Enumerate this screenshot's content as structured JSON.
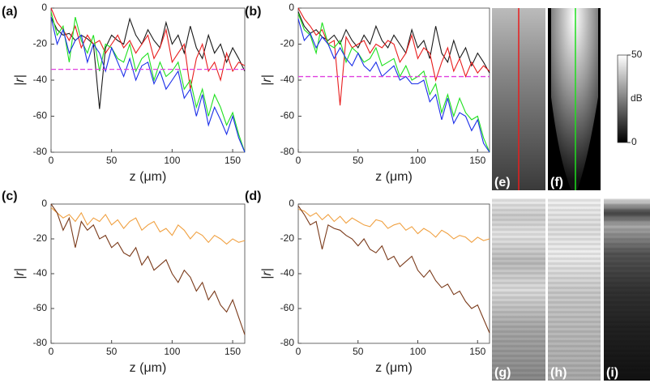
{
  "chart_data": [
    {
      "type": "line",
      "panel_label": "(a)",
      "xlabel": "z (μm)",
      "ylabel": "|r|",
      "x": [
        0,
        5,
        10,
        15,
        20,
        25,
        30,
        35,
        40,
        45,
        50,
        55,
        60,
        65,
        70,
        75,
        80,
        85,
        90,
        95,
        100,
        105,
        110,
        115,
        120,
        125,
        130,
        135,
        140,
        145,
        150,
        155,
        160
      ],
      "xlim": [
        0,
        160
      ],
      "ylim": [
        -80,
        0
      ],
      "xticks": [
        0,
        50,
        100,
        150
      ],
      "yticks": [
        -80,
        -60,
        -40,
        -20,
        0
      ],
      "reference_line": {
        "value": -34,
        "color": "#e040e0"
      },
      "series": [
        {
          "color": "#1a1a1a",
          "values": [
            -5,
            -12,
            -15,
            -14,
            -18,
            -15,
            -17,
            -20,
            -56,
            -22,
            -15,
            -18,
            -20,
            -6,
            -15,
            -20,
            -12,
            -18,
            -22,
            -8,
            -20,
            -15,
            -25,
            -10,
            -22,
            -28,
            -15,
            -25,
            -20,
            -30,
            -22,
            -28,
            -35
          ]
        },
        {
          "color": "#e81d1d",
          "values": [
            0,
            -8,
            -12,
            -18,
            -10,
            -22,
            -15,
            -20,
            -18,
            -25,
            -20,
            -15,
            -22,
            -18,
            -25,
            -20,
            -15,
            -28,
            -22,
            -12,
            -30,
            -25,
            -20,
            -45,
            -28,
            -20,
            -35,
            -30,
            -40,
            -25,
            -35,
            -30,
            -32
          ]
        },
        {
          "color": "#1ee01e",
          "values": [
            -2,
            -15,
            -10,
            -30,
            -5,
            -18,
            -25,
            -15,
            -35,
            -20,
            -22,
            -28,
            -30,
            -20,
            -35,
            -28,
            -25,
            -40,
            -30,
            -38,
            -35,
            -30,
            -45,
            -40,
            -55,
            -45,
            -60,
            -48,
            -55,
            -65,
            -58,
            -70,
            -80
          ]
        },
        {
          "color": "#1a2ee8",
          "values": [
            -5,
            -20,
            -12,
            -25,
            -18,
            -15,
            -30,
            -20,
            -25,
            -35,
            -22,
            -30,
            -38,
            -28,
            -40,
            -32,
            -30,
            -42,
            -35,
            -45,
            -40,
            -35,
            -50,
            -45,
            -60,
            -48,
            -65,
            -55,
            -62,
            -70,
            -60,
            -72,
            -80
          ]
        }
      ]
    },
    {
      "type": "line",
      "panel_label": "(b)",
      "xlabel": "z (μm)",
      "ylabel": "|r|",
      "x": [
        0,
        5,
        10,
        15,
        20,
        25,
        30,
        35,
        40,
        45,
        50,
        55,
        60,
        65,
        70,
        75,
        80,
        85,
        90,
        95,
        100,
        105,
        110,
        115,
        120,
        125,
        130,
        135,
        140,
        145,
        150,
        155,
        160
      ],
      "xlim": [
        0,
        160
      ],
      "ylim": [
        -80,
        0
      ],
      "xticks": [
        0,
        50,
        100,
        150
      ],
      "yticks": [
        -80,
        -60,
        -40,
        -20,
        0
      ],
      "reference_line": {
        "value": -38,
        "color": "#e040e0"
      },
      "series": [
        {
          "color": "#1a1a1a",
          "values": [
            -2,
            -10,
            -14,
            -12,
            -16,
            -18,
            -15,
            -20,
            -12,
            -18,
            -22,
            -15,
            -20,
            -10,
            -18,
            -22,
            -15,
            -20,
            -25,
            -12,
            -22,
            -18,
            -28,
            -10,
            -25,
            -30,
            -18,
            -28,
            -22,
            -32,
            -25,
            -30,
            -36
          ]
        },
        {
          "color": "#e81d1d",
          "values": [
            0,
            -6,
            -10,
            -15,
            -12,
            -20,
            -18,
            -54,
            -16,
            -22,
            -20,
            -18,
            -25,
            -20,
            -22,
            -18,
            -20,
            -30,
            -25,
            -15,
            -28,
            -22,
            -25,
            -40,
            -30,
            -22,
            -35,
            -28,
            -38,
            -30,
            -36,
            -32,
            -35
          ]
        },
        {
          "color": "#1ee01e",
          "values": [
            -3,
            -12,
            -15,
            -25,
            -8,
            -20,
            -22,
            -18,
            -30,
            -22,
            -25,
            -30,
            -28,
            -22,
            -32,
            -30,
            -28,
            -38,
            -32,
            -40,
            -38,
            -35,
            -48,
            -42,
            -58,
            -48,
            -60,
            -50,
            -58,
            -62,
            -60,
            -72,
            -80
          ]
        },
        {
          "color": "#1a2ee8",
          "values": [
            -6,
            -18,
            -14,
            -22,
            -16,
            -20,
            -28,
            -22,
            -28,
            -32,
            -25,
            -32,
            -35,
            -30,
            -38,
            -35,
            -32,
            -40,
            -38,
            -42,
            -42,
            -40,
            -52,
            -48,
            -62,
            -50,
            -64,
            -58,
            -60,
            -68,
            -62,
            -75,
            -80
          ]
        }
      ]
    },
    {
      "type": "line",
      "panel_label": "(c)",
      "xlabel": "z (μm)",
      "ylabel": "|r|",
      "x": [
        0,
        5,
        10,
        15,
        20,
        25,
        30,
        35,
        40,
        45,
        50,
        55,
        60,
        65,
        70,
        75,
        80,
        85,
        90,
        95,
        100,
        105,
        110,
        115,
        120,
        125,
        130,
        135,
        140,
        145,
        150,
        155,
        160
      ],
      "xlim": [
        0,
        160
      ],
      "ylim": [
        -80,
        0
      ],
      "xticks": [
        0,
        50,
        100,
        150
      ],
      "yticks": [
        -80,
        -60,
        -40,
        -20,
        0
      ],
      "series": [
        {
          "color": "#f0a040",
          "values": [
            -2,
            -5,
            -8,
            -6,
            -10,
            -5,
            -12,
            -8,
            -10,
            -6,
            -12,
            -9,
            -14,
            -10,
            -8,
            -15,
            -12,
            -10,
            -16,
            -14,
            -18,
            -12,
            -15,
            -20,
            -16,
            -18,
            -22,
            -18,
            -20,
            -23,
            -20,
            -22,
            -21
          ]
        },
        {
          "color": "#7a3a1a",
          "values": [
            0,
            -5,
            -15,
            -8,
            -25,
            -10,
            -15,
            -12,
            -20,
            -18,
            -25,
            -22,
            -28,
            -30,
            -25,
            -35,
            -30,
            -38,
            -35,
            -32,
            -40,
            -45,
            -38,
            -42,
            -50,
            -45,
            -55,
            -50,
            -58,
            -62,
            -55,
            -65,
            -75
          ]
        }
      ]
    },
    {
      "type": "line",
      "panel_label": "(d)",
      "xlabel": "z (μm)",
      "ylabel": "|r|",
      "x": [
        0,
        5,
        10,
        15,
        20,
        25,
        30,
        35,
        40,
        45,
        50,
        55,
        60,
        65,
        70,
        75,
        80,
        85,
        90,
        95,
        100,
        105,
        110,
        115,
        120,
        125,
        130,
        135,
        140,
        145,
        150,
        155,
        160
      ],
      "xlim": [
        0,
        160
      ],
      "ylim": [
        -80,
        0
      ],
      "xticks": [
        0,
        50,
        100,
        150
      ],
      "yticks": [
        -80,
        -60,
        -40,
        -20,
        0
      ],
      "series": [
        {
          "color": "#f0a040",
          "values": [
            -3,
            -4,
            -7,
            -5,
            -9,
            -6,
            -10,
            -7,
            -11,
            -8,
            -10,
            -12,
            -13,
            -9,
            -10,
            -14,
            -12,
            -11,
            -15,
            -13,
            -17,
            -14,
            -16,
            -19,
            -15,
            -17,
            -20,
            -18,
            -19,
            -22,
            -19,
            -21,
            -20
          ]
        },
        {
          "color": "#7a3a1a",
          "values": [
            -1,
            -6,
            -12,
            -10,
            -26,
            -12,
            -14,
            -15,
            -18,
            -20,
            -24,
            -20,
            -26,
            -28,
            -24,
            -32,
            -30,
            -36,
            -33,
            -30,
            -38,
            -42,
            -38,
            -44,
            -48,
            -46,
            -52,
            -50,
            -56,
            -60,
            -58,
            -66,
            -74
          ]
        }
      ]
    }
  ],
  "images": {
    "panel_labels": [
      "(e)",
      "(f)",
      "(g)",
      "(h)",
      "(i)"
    ],
    "colorbar": {
      "label": "dB",
      "lim": [
        0,
        50
      ],
      "ticks": [
        0,
        50
      ]
    }
  }
}
